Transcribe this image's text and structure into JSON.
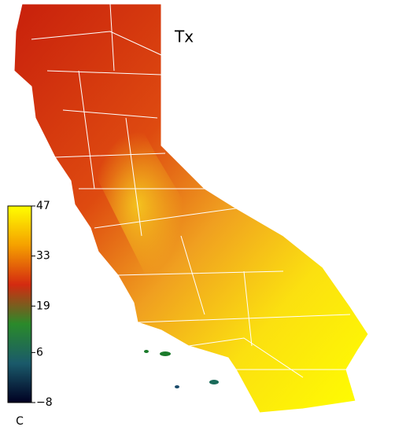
{
  "map": {
    "title": "Tx",
    "colorbar": {
      "unit": "C",
      "lim": [
        -8,
        47
      ],
      "ticks": [
        47,
        33,
        19,
        6,
        {
          "value": -8,
          "label": "−8"
        }
      ],
      "colors": [
        "#ffff00",
        "#f5a000",
        "#d42a10",
        "#2a8a2a",
        "#1a5a6a",
        "#000022"
      ]
    }
  }
}
